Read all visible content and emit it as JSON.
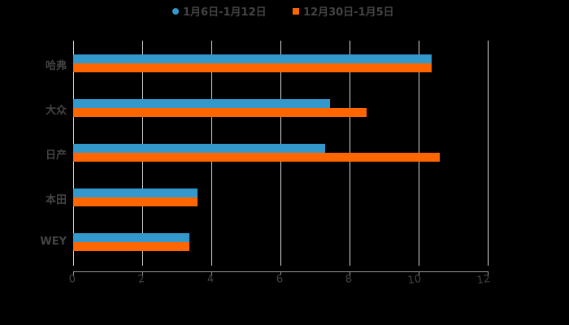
{
  "chart_data": {
    "type": "bar",
    "orientation": "horizontal",
    "title": "",
    "xlabel": "",
    "ylabel": "",
    "categories": [
      "哈弗",
      "大众",
      "日产",
      "本田",
      "WEY"
    ],
    "series": [
      {
        "name": "1月6日-1月12日",
        "color": "#3399CC",
        "values": [
          10.37,
          7.44,
          7.29,
          3.6,
          3.36
        ]
      },
      {
        "name": "12月30日-1月5日",
        "color": "#FF6600",
        "values": [
          10.37,
          8.49,
          10.61,
          3.6,
          3.36
        ]
      }
    ],
    "xlim": [
      0,
      12
    ],
    "xticks": [
      "0",
      "2",
      "4",
      "6",
      "8",
      "10",
      "12"
    ],
    "grid": true,
    "legend_position": "top"
  },
  "legend": {
    "items": [
      {
        "label": "1月6日-1月12日",
        "color": "#3399CC",
        "marker": "circle"
      },
      {
        "label": "12月30日-1月5日",
        "color": "#FF6600",
        "marker": "square"
      }
    ]
  }
}
